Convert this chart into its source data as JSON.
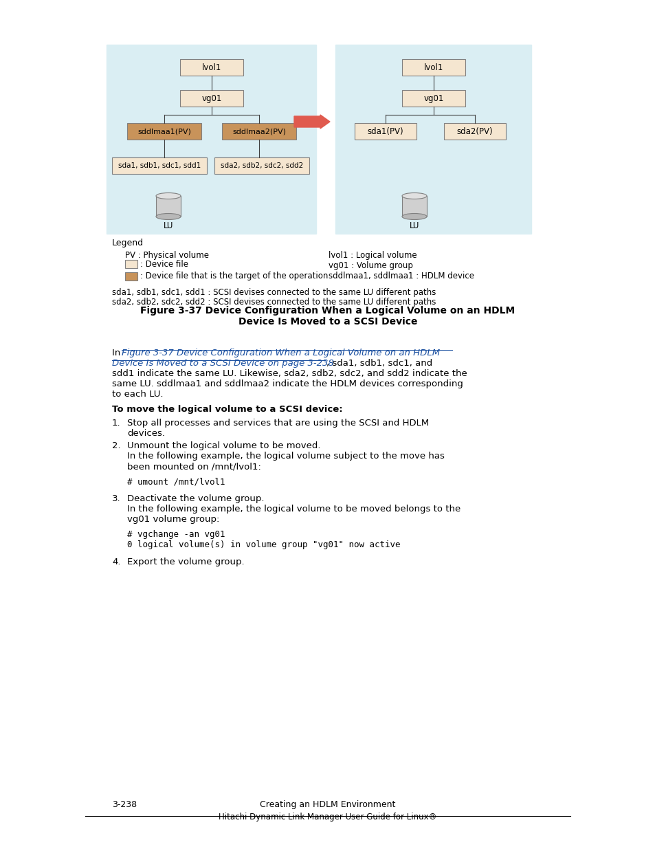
{
  "bg_color": "#ffffff",
  "diagram_bg": "#daeef3",
  "box_color_light": "#f5e6d0",
  "box_color_dark": "#c8935a",
  "box_border": "#808080",
  "arrow_color": "#e05a4e",
  "legend_sda1": "sda1, sdb1, sdc1, sdd1 : SCSI devises connected to the same LU different paths",
  "legend_sda2": "sda2, sdb2, sdc2, sdd2 : SCSI devises connected to the same LU different paths",
  "figure_title": "Figure 3-37 Device Configuration When a Logical Volume on an HDLM\nDevice Is Moved to a SCSI Device",
  "footer_left": "3-238",
  "footer_center": "Creating an HDLM Environment",
  "footer_bottom": "Hitachi Dynamic Link Manager User Guide for Linux®"
}
